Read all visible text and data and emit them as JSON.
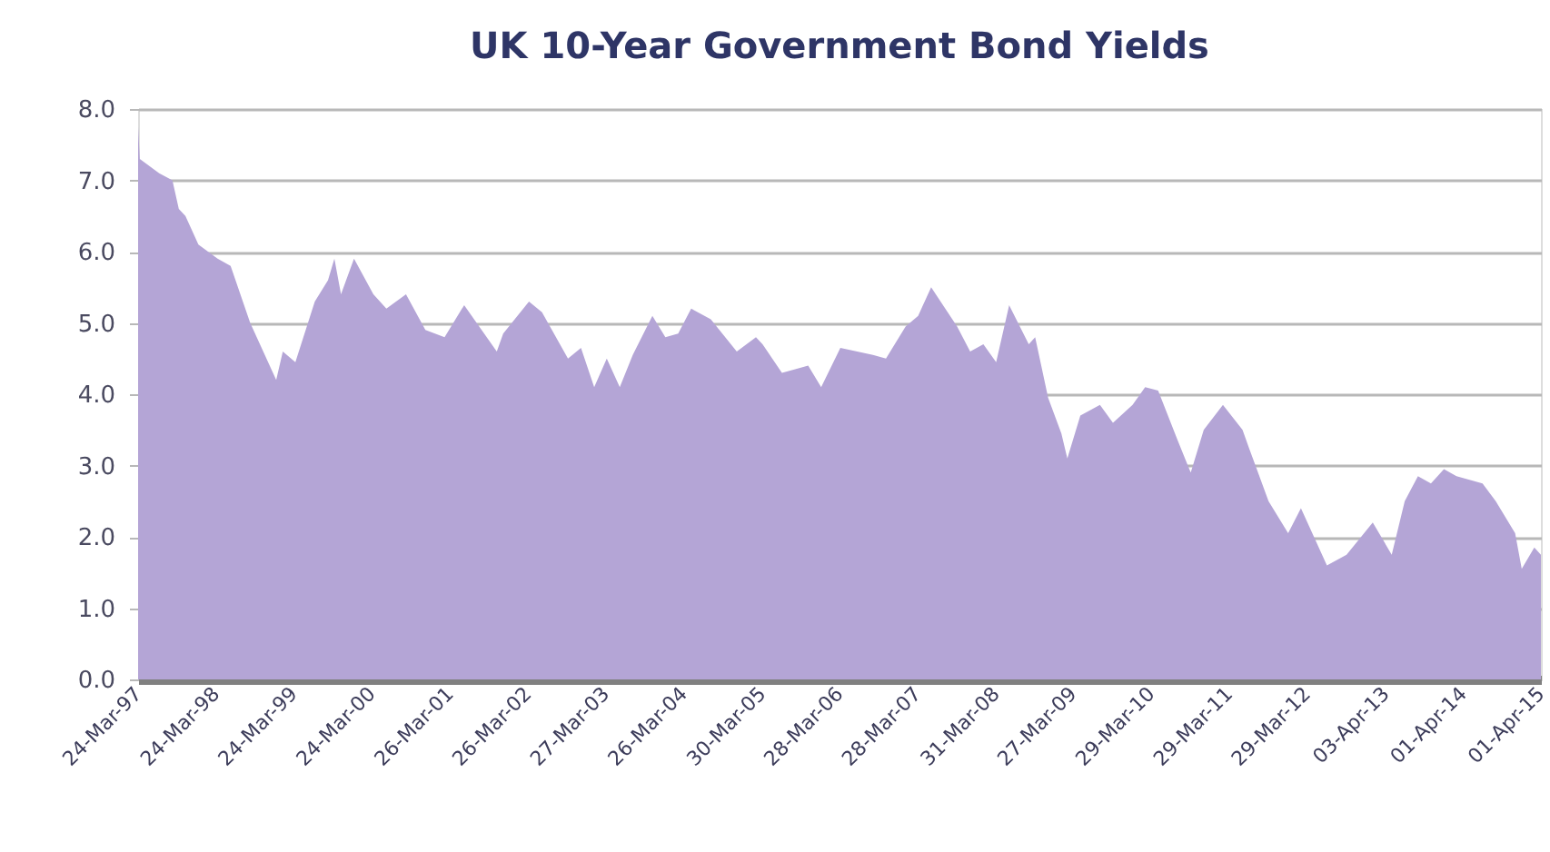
{
  "chart_data": {
    "type": "area",
    "title": "UK 10-Year Government Bond Yields",
    "grid": "y",
    "series": [
      {
        "color": "#b4a5d6",
        "x": [
          "1997-03-24",
          "1997-04",
          "1997-07",
          "1997-09",
          "1997-10",
          "1997-11",
          "1998-01",
          "1998-04",
          "1998-06",
          "1998-09",
          "1999-01",
          "1999-02",
          "1999-04",
          "1999-07",
          "1999-09",
          "1999-10",
          "1999-11",
          "2000-01",
          "2000-04",
          "2000-06",
          "2000-09",
          "2000-12",
          "2001-03",
          "2001-06",
          "2001-11",
          "2001-12",
          "2002-04",
          "2002-06",
          "2002-10",
          "2002-12",
          "2003-02",
          "2003-04",
          "2003-06",
          "2003-08",
          "2003-11",
          "2004-01",
          "2004-03",
          "2004-05",
          "2004-08",
          "2004-12",
          "2005-03",
          "2005-04",
          "2005-07",
          "2005-09",
          "2005-11",
          "2006-01",
          "2006-04",
          "2006-09",
          "2006-11",
          "2007-02",
          "2007-04",
          "2007-06",
          "2007-10",
          "2007-12",
          "2008-02",
          "2008-04",
          "2008-06",
          "2008-09",
          "2008-10",
          "2008-12",
          "2009-02",
          "2009-03",
          "2009-05",
          "2009-08",
          "2009-10",
          "2010-01",
          "2010-03",
          "2010-05",
          "2010-08",
          "2010-10",
          "2010-12",
          "2011-03",
          "2011-06",
          "2011-07",
          "2011-10",
          "2012-01",
          "2012-03",
          "2012-07",
          "2012-10",
          "2013-02",
          "2013-05",
          "2013-07",
          "2013-09",
          "2013-11",
          "2014-01",
          "2014-03",
          "2014-07",
          "2014-09",
          "2014-12",
          "2015-01",
          "2015-03",
          "2015-04-01"
        ],
        "values": [
          7.75,
          7.3,
          7.1,
          7.0,
          6.6,
          6.5,
          6.1,
          5.9,
          5.8,
          5.0,
          4.2,
          4.6,
          4.45,
          5.3,
          5.6,
          5.9,
          5.4,
          5.9,
          5.4,
          5.2,
          5.4,
          4.9,
          4.8,
          5.25,
          4.6,
          4.85,
          5.3,
          5.15,
          4.5,
          4.65,
          4.1,
          4.5,
          4.1,
          4.55,
          5.1,
          4.8,
          4.85,
          5.2,
          5.05,
          4.6,
          4.8,
          4.7,
          4.3,
          4.35,
          4.4,
          4.1,
          4.65,
          4.55,
          4.5,
          4.95,
          5.1,
          5.5,
          4.95,
          4.6,
          4.7,
          4.45,
          5.25,
          4.7,
          4.8,
          3.95,
          3.45,
          3.1,
          3.7,
          3.85,
          3.6,
          3.85,
          4.1,
          4.05,
          3.35,
          2.9,
          3.5,
          3.85,
          3.5,
          3.25,
          2.5,
          2.05,
          2.4,
          1.6,
          1.75,
          2.2,
          1.75,
          2.5,
          2.85,
          2.75,
          2.95,
          2.85,
          2.75,
          2.5,
          2.05,
          1.55,
          1.85,
          1.75
        ]
      }
    ],
    "xlim": [
      "1997-03-24",
      "2015-04-01"
    ],
    "xticks": [
      {
        "value": "1997-03-24",
        "label": "24-Mar-97"
      },
      {
        "value": "1998-03-24",
        "label": "24-Mar-98"
      },
      {
        "value": "1999-03-24",
        "label": "24-Mar-99"
      },
      {
        "value": "2000-03-24",
        "label": "24-Mar-00"
      },
      {
        "value": "2001-03-26",
        "label": "26-Mar-01"
      },
      {
        "value": "2002-03-26",
        "label": "26-Mar-02"
      },
      {
        "value": "2003-03-27",
        "label": "27-Mar-03"
      },
      {
        "value": "2004-03-26",
        "label": "26-Mar-04"
      },
      {
        "value": "2005-03-30",
        "label": "30-Mar-05"
      },
      {
        "value": "2006-03-28",
        "label": "28-Mar-06"
      },
      {
        "value": "2007-03-28",
        "label": "28-Mar-07"
      },
      {
        "value": "2008-03-31",
        "label": "31-Mar-08"
      },
      {
        "value": "2009-03-27",
        "label": "27-Mar-09"
      },
      {
        "value": "2010-03-29",
        "label": "29-Mar-10"
      },
      {
        "value": "2011-03-29",
        "label": "29-Mar-11"
      },
      {
        "value": "2012-03-29",
        "label": "29-Mar-12"
      },
      {
        "value": "2013-04-03",
        "label": "03-Apr-13"
      },
      {
        "value": "2014-04-01",
        "label": "01-Apr-14"
      },
      {
        "value": "2015-04-01",
        "label": "01-Apr-15"
      }
    ],
    "ylim": [
      0,
      8
    ],
    "yticks": [
      {
        "value": 0,
        "label": "0.0"
      },
      {
        "value": 1,
        "label": "1.0"
      },
      {
        "value": 2,
        "label": "2.0"
      },
      {
        "value": 3,
        "label": "3.0"
      },
      {
        "value": 4,
        "label": "4.0"
      },
      {
        "value": 5,
        "label": "5.0"
      },
      {
        "value": 6,
        "label": "6.0"
      },
      {
        "value": 7,
        "label": "7.0"
      },
      {
        "value": 8,
        "label": "8.0"
      }
    ]
  }
}
